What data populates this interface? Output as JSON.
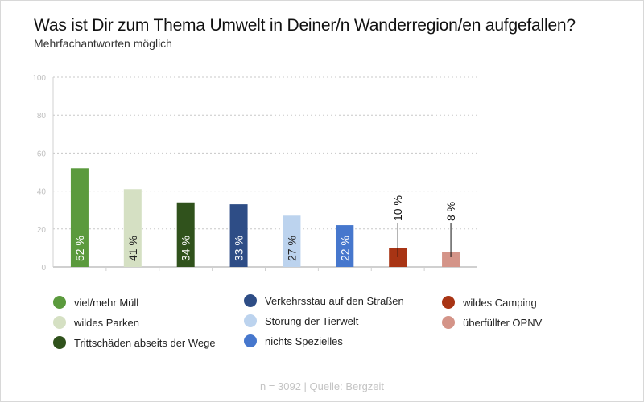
{
  "title": "Was ist Dir zum Thema Umwelt in Deiner/n Wanderregion/en aufgefallen?",
  "subtitle": "Mehrfachantworten möglich",
  "footer": "n = 3092 | Quelle: Bergzeit",
  "chart_data": {
    "type": "bar",
    "categories": [
      "viel/mehr Müll",
      "wildes Parken",
      "Trittschäden abseits der Wege",
      "Verkehrsstau auf den Straßen",
      "Störung der Tierwelt",
      "nichts Spezielles",
      "wildes Camping",
      "überfüllter ÖPNV"
    ],
    "values": [
      52,
      41,
      34,
      33,
      27,
      22,
      10,
      8
    ],
    "data_labels": [
      "52 %",
      "41 %",
      "34 %",
      "33 %",
      "27 %",
      "22 %",
      "10 %",
      "8 %"
    ],
    "colors": [
      "#5b9a3d",
      "#d5e0c3",
      "#30521c",
      "#2e4d86",
      "#bcd3ee",
      "#4677cd",
      "#a83414",
      "#d49488"
    ],
    "label_colors": [
      "#ffffff",
      "#222222",
      "#ffffff",
      "#ffffff",
      "#222222",
      "#ffffff",
      "#111111",
      "#111111"
    ],
    "ylim": [
      0,
      100
    ],
    "yticks": [
      "0",
      "20",
      "40",
      "60",
      "80",
      "100"
    ],
    "grid": true,
    "legend_position": "bottom",
    "xlabel": "",
    "ylabel": ""
  }
}
